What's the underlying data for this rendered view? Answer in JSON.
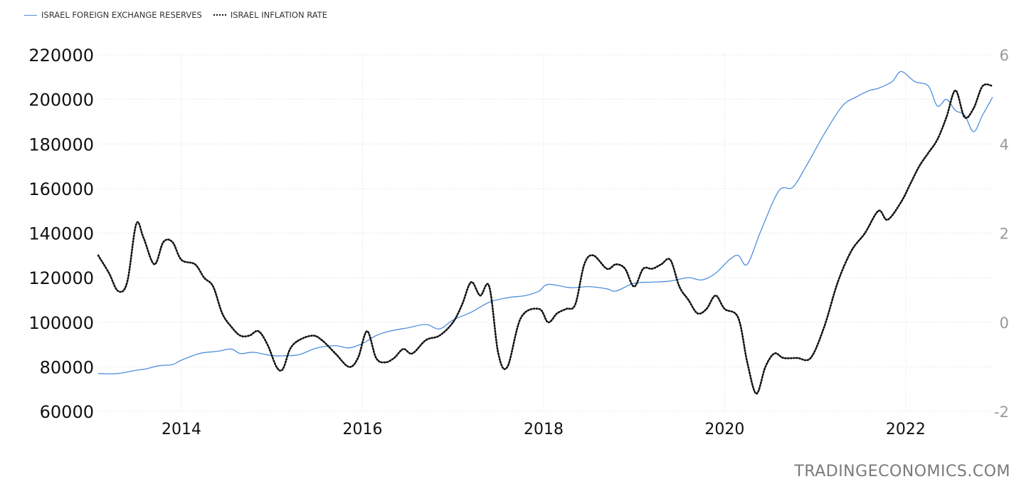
{
  "legend": {
    "series1": "ISRAEL FOREIGN EXCHANGE RESERVES",
    "series2": "ISRAEL INFLATION RATE"
  },
  "watermark": "TRADINGECONOMICS.COM",
  "colors": {
    "reserves": "#4f8fdc",
    "inflation": "#111111",
    "grid": "#dddddd"
  },
  "chart_data": {
    "type": "line",
    "title": "",
    "xlabel": "",
    "ylabel": "",
    "legend_placement": "top-left",
    "grid": true,
    "x_ticks": [
      "2014",
      "2016",
      "2018",
      "2020",
      "2022"
    ],
    "xlim": [
      2013.08,
      2022.96
    ],
    "y_left": {
      "lim": [
        60000,
        220000
      ],
      "ticks": [
        "60000",
        "80000",
        "100000",
        "120000",
        "140000",
        "160000",
        "180000",
        "200000",
        "220000"
      ]
    },
    "y_right": {
      "lim": [
        -2,
        6
      ],
      "ticks": [
        "-2",
        "0",
        "2",
        "4",
        "6"
      ]
    },
    "series": [
      {
        "name": "ISRAEL FOREIGN EXCHANGE RESERVES",
        "axis": "left",
        "x": [
          2013.08,
          2013.3,
          2013.5,
          2013.6,
          2013.75,
          2013.9,
          2014.0,
          2014.2,
          2014.4,
          2014.55,
          2014.65,
          2014.8,
          2015.0,
          2015.15,
          2015.3,
          2015.5,
          2015.7,
          2015.85,
          2016.0,
          2016.15,
          2016.3,
          2016.5,
          2016.7,
          2016.85,
          2017.0,
          2017.2,
          2017.4,
          2017.6,
          2017.8,
          2017.95,
          2018.05,
          2018.3,
          2018.5,
          2018.7,
          2018.8,
          2019.0,
          2019.2,
          2019.4,
          2019.6,
          2019.75,
          2019.9,
          2020.05,
          2020.15,
          2020.25,
          2020.4,
          2020.6,
          2020.75,
          2020.9,
          2021.1,
          2021.3,
          2021.45,
          2021.6,
          2021.7,
          2021.85,
          2021.95,
          2022.1,
          2022.25,
          2022.35,
          2022.45,
          2022.55,
          2022.65,
          2022.75,
          2022.85,
          2022.96
        ],
        "values": [
          77000,
          77000,
          78500,
          79000,
          80500,
          81000,
          83000,
          86000,
          87000,
          88000,
          86000,
          86500,
          85000,
          85000,
          85500,
          88500,
          89500,
          88500,
          90500,
          94000,
          96000,
          97500,
          99000,
          97000,
          101000,
          104500,
          109000,
          111000,
          112000,
          114000,
          117000,
          115500,
          116000,
          115000,
          114000,
          117500,
          118000,
          118500,
          120000,
          119000,
          122000,
          128000,
          130000,
          126000,
          141000,
          159000,
          160500,
          170000,
          184500,
          197000,
          201000,
          204000,
          205000,
          208000,
          212500,
          208000,
          206000,
          197000,
          200000,
          195000,
          193000,
          185500,
          193000,
          201000
        ]
      },
      {
        "name": "ISRAEL INFLATION RATE",
        "axis": "right",
        "x": [
          2013.08,
          2013.2,
          2013.3,
          2013.4,
          2013.5,
          2013.58,
          2013.7,
          2013.8,
          2013.9,
          2014.0,
          2014.15,
          2014.25,
          2014.35,
          2014.45,
          2014.55,
          2014.65,
          2014.75,
          2014.85,
          2014.95,
          2015.05,
          2015.12,
          2015.2,
          2015.3,
          2015.45,
          2015.55,
          2015.7,
          2015.85,
          2015.95,
          2016.05,
          2016.15,
          2016.25,
          2016.35,
          2016.45,
          2016.55,
          2016.7,
          2016.85,
          2017.0,
          2017.1,
          2017.2,
          2017.3,
          2017.4,
          2017.5,
          2017.6,
          2017.75,
          2017.95,
          2018.05,
          2018.15,
          2018.25,
          2018.35,
          2018.45,
          2018.55,
          2018.7,
          2018.8,
          2018.9,
          2019.0,
          2019.1,
          2019.2,
          2019.3,
          2019.4,
          2019.5,
          2019.6,
          2019.7,
          2019.8,
          2019.9,
          2020.0,
          2020.15,
          2020.25,
          2020.35,
          2020.45,
          2020.55,
          2020.65,
          2020.8,
          2020.95,
          2021.1,
          2021.25,
          2021.4,
          2021.55,
          2021.7,
          2021.8,
          2021.95,
          2022.05,
          2022.15,
          2022.25,
          2022.35,
          2022.45,
          2022.55,
          2022.65,
          2022.75,
          2022.85,
          2022.96
        ],
        "values": [
          1.5,
          1.1,
          0.7,
          0.9,
          2.2,
          1.9,
          1.3,
          1.8,
          1.8,
          1.4,
          1.3,
          1.0,
          0.8,
          0.2,
          -0.1,
          -0.3,
          -0.3,
          -0.2,
          -0.5,
          -1.0,
          -1.05,
          -0.6,
          -0.4,
          -0.3,
          -0.4,
          -0.7,
          -1.0,
          -0.8,
          -0.2,
          -0.8,
          -0.9,
          -0.8,
          -0.6,
          -0.7,
          -0.4,
          -0.3,
          0.0,
          0.4,
          0.9,
          0.6,
          0.8,
          -0.7,
          -1.0,
          0.1,
          0.3,
          0.0,
          0.2,
          0.3,
          0.4,
          1.3,
          1.5,
          1.2,
          1.3,
          1.2,
          0.8,
          1.2,
          1.2,
          1.3,
          1.4,
          0.8,
          0.5,
          0.2,
          0.3,
          0.6,
          0.3,
          0.1,
          -0.9,
          -1.6,
          -1.0,
          -0.7,
          -0.8,
          -0.8,
          -0.8,
          -0.1,
          0.9,
          1.6,
          2.0,
          2.5,
          2.3,
          2.7,
          3.1,
          3.5,
          3.8,
          4.1,
          4.6,
          5.2,
          4.6,
          4.8,
          5.3,
          5.3
        ]
      }
    ]
  }
}
